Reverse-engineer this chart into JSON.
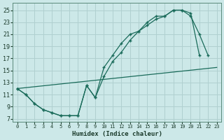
{
  "xlabel": "Humidex (Indice chaleur)",
  "bg_color": "#cce8e8",
  "grid_color": "#b0d0d0",
  "line_color": "#1a6b5a",
  "xlim": [
    -0.5,
    23.5
  ],
  "ylim": [
    6.5,
    26.2
  ],
  "xticks": [
    0,
    1,
    2,
    3,
    4,
    5,
    6,
    7,
    8,
    9,
    10,
    11,
    12,
    13,
    14,
    15,
    16,
    17,
    18,
    19,
    20,
    21,
    22,
    23
  ],
  "yticks": [
    7,
    9,
    11,
    13,
    15,
    17,
    19,
    21,
    23,
    25
  ],
  "line1_x": [
    0,
    1,
    2,
    3,
    4,
    5,
    6,
    7,
    8,
    9,
    10,
    11,
    12,
    13,
    14,
    15,
    16,
    17,
    18,
    19,
    20,
    21
  ],
  "line1_y": [
    12,
    11,
    9.5,
    8.5,
    8,
    7.5,
    7.5,
    7.5,
    12.5,
    10.5,
    15.5,
    17.5,
    19.5,
    21,
    21.5,
    23,
    24,
    24,
    25,
    25,
    24.5,
    17.5
  ],
  "line2_x": [
    0,
    1,
    2,
    3,
    4,
    5,
    6,
    7,
    8,
    9,
    10,
    11,
    12,
    13,
    14,
    15,
    16,
    17,
    18,
    19,
    20,
    21,
    22
  ],
  "line2_y": [
    12,
    11,
    9.5,
    8.5,
    8,
    7.5,
    7.5,
    7.5,
    12.5,
    10.5,
    14,
    16.5,
    18,
    20,
    21.5,
    22.5,
    23.5,
    24,
    25,
    25,
    24,
    21,
    17.5
  ],
  "line3_x": [
    0,
    23
  ],
  "line3_y": [
    12,
    15.5
  ],
  "marker_size": 3.5,
  "linewidth": 0.9
}
